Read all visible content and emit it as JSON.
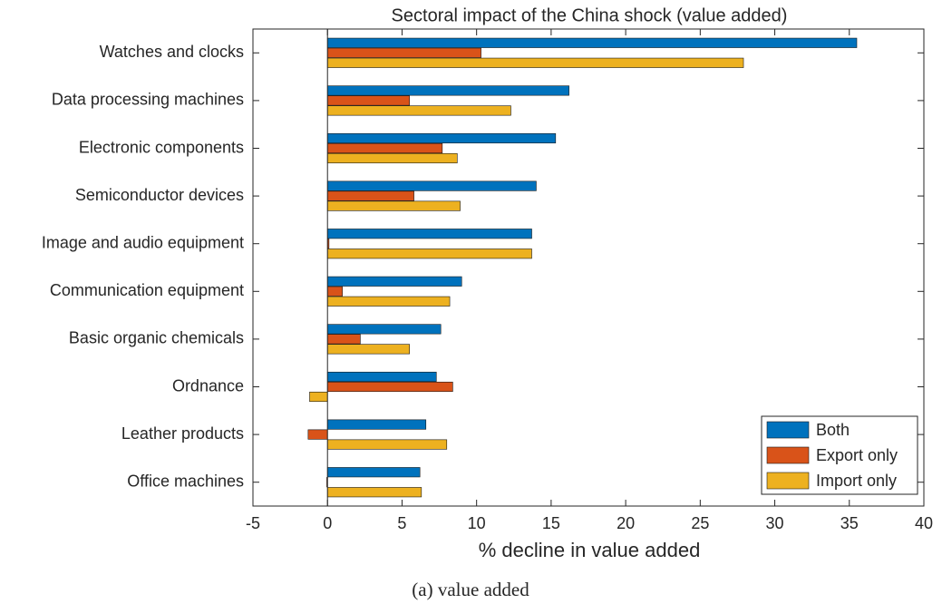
{
  "chart_data": {
    "type": "hbar",
    "title": "Sectoral impact of the China shock (value added)",
    "xlabel": "% decline in value added",
    "caption": "(a) value added",
    "categories": [
      "Watches and clocks",
      "Data processing machines",
      "Electronic components",
      "Semiconductor devices",
      "Image and audio equipment",
      "Communication equipment",
      "Basic organic chemicals",
      "Ordnance",
      "Leather products",
      "Office machines"
    ],
    "series": [
      {
        "name": "Both",
        "color": "#0072bd",
        "values": [
          35.5,
          16.2,
          15.3,
          14.0,
          13.7,
          9.0,
          7.6,
          7.3,
          6.6,
          6.2
        ]
      },
      {
        "name": "Export only",
        "color": "#d95319",
        "values": [
          10.3,
          5.5,
          7.7,
          5.8,
          0.1,
          1.0,
          2.2,
          8.4,
          -1.3,
          -0.05
        ]
      },
      {
        "name": "Import only",
        "color": "#edb120",
        "values": [
          27.9,
          12.3,
          8.7,
          8.9,
          13.7,
          8.2,
          5.5,
          -1.2,
          8.0,
          6.3
        ]
      }
    ],
    "xlim": [
      -5,
      40
    ],
    "xticks": [
      -5,
      0,
      5,
      10,
      15,
      20,
      25,
      30,
      35,
      40
    ],
    "legend": "lower right"
  }
}
